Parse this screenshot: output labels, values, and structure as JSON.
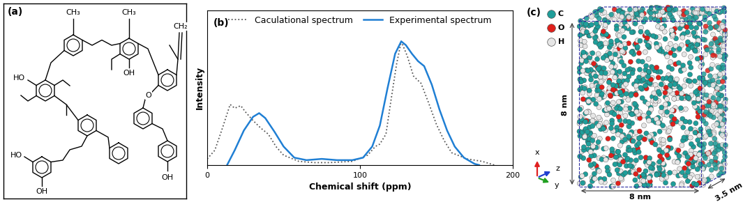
{
  "structure": {
    "label": "(a)",
    "atom_labels": [
      "CH₃",
      "CH₃",
      "OH",
      "CH₂",
      "O",
      "HO",
      "OH",
      "HO",
      "OH"
    ]
  },
  "chart_data": {
    "type": "line",
    "label": "(b)",
    "x_label": "Chemical shift (ppm)",
    "y_label": "Intensity",
    "xlim": [
      0,
      200
    ],
    "xticks": [
      0,
      100,
      200
    ],
    "ylim": [
      0,
      1.25
    ],
    "tick_labels": "x",
    "legend": "upper center",
    "series": [
      {
        "name": "Caculational spectrum",
        "color": "#555555",
        "line_style": "dotted",
        "x": [
          0,
          5,
          10,
          15,
          18,
          22,
          25,
          30,
          35,
          40,
          45,
          50,
          60,
          70,
          80,
          95,
          105,
          110,
          113,
          117,
          120,
          124,
          127,
          131,
          135,
          140,
          145,
          150,
          155,
          160,
          170,
          180,
          188
        ],
        "values": [
          0.05,
          0.12,
          0.3,
          0.49,
          0.46,
          0.48,
          0.43,
          0.36,
          0.3,
          0.25,
          0.15,
          0.08,
          0.03,
          0.02,
          0.02,
          0.03,
          0.08,
          0.15,
          0.17,
          0.25,
          0.5,
          0.82,
          1.0,
          0.88,
          0.72,
          0.66,
          0.5,
          0.33,
          0.2,
          0.1,
          0.05,
          0.03,
          0.0
        ]
      },
      {
        "name": "Experimental spectrum",
        "color": "#1f7fd4",
        "line_style": "solid",
        "x": [
          13,
          18,
          24,
          30,
          34,
          38,
          44,
          50,
          57,
          65,
          75,
          85,
          95,
          102,
          108,
          113,
          118,
          123,
          127,
          130,
          134,
          138,
          142,
          147,
          152,
          157,
          162,
          168,
          175,
          178
        ],
        "values": [
          0.0,
          0.12,
          0.28,
          0.39,
          0.42,
          0.38,
          0.27,
          0.15,
          0.06,
          0.04,
          0.05,
          0.04,
          0.04,
          0.06,
          0.15,
          0.32,
          0.62,
          0.9,
          1.0,
          0.97,
          0.9,
          0.84,
          0.8,
          0.65,
          0.45,
          0.28,
          0.15,
          0.06,
          0.01,
          0.0
        ]
      }
    ]
  },
  "model": {
    "label": "(c)",
    "legend": [
      {
        "name": "C",
        "color": "#1f9e9a"
      },
      {
        "name": "O",
        "color": "#e0201b"
      },
      {
        "name": "H",
        "color": "#e6e6e6"
      }
    ],
    "axes": [
      "x",
      "y",
      "z"
    ],
    "dimensions": [
      "8 nm",
      "8 nm",
      "3.5 nm"
    ]
  }
}
